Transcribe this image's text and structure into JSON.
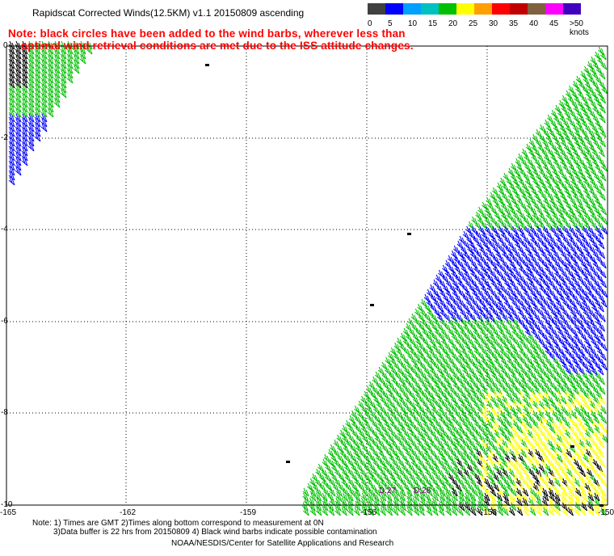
{
  "header": {
    "title": "Rapidscat Corrected Winds(12.5KM) v1.1 20150809 ascending",
    "note_line1": "Note: black circles have been added to the wind barbs, wherever less than",
    "note_line2": "    optimal wind retrieval conditions are met due to the ISS attitude changes."
  },
  "colorbar": {
    "labels": [
      "0",
      "5",
      "10",
      "15",
      "20",
      "25",
      "30",
      "35",
      "40",
      "45",
      ">50 knots"
    ],
    "colors": [
      "#404040",
      "#0000ff",
      "#00a0ff",
      "#00c0c0",
      "#00c000",
      "#ffff00",
      "#ffa000",
      "#ff0000",
      "#c00000",
      "#806040",
      "#ff00ff",
      "#4000c0"
    ]
  },
  "map": {
    "y_ticks": [
      "0",
      "-2",
      "-4",
      "-6",
      "-8",
      "-10"
    ],
    "x_ticks": [
      "-165",
      "-162",
      "-159",
      "-156",
      "-153",
      "-150"
    ],
    "lon_range": [
      -165,
      -150
    ],
    "lat_range": [
      -10,
      0
    ],
    "orbit_labels": [
      "D:27",
      "D:28"
    ],
    "barb_colors": {
      "blue": "#0000ff",
      "green": "#00c000",
      "yellow": "#ffff00",
      "black": "#000000"
    }
  },
  "footer": {
    "line1": "Note: 1) Times are GMT 2)Times along bottom correspond to measurement at 0N",
    "line2": "3)Data buffer is 22 hrs from 20150809 4) Black wind barbs indicate possible contamination",
    "line3": "NOAA/NESDIS/Center for Satellite Applications and Research"
  }
}
